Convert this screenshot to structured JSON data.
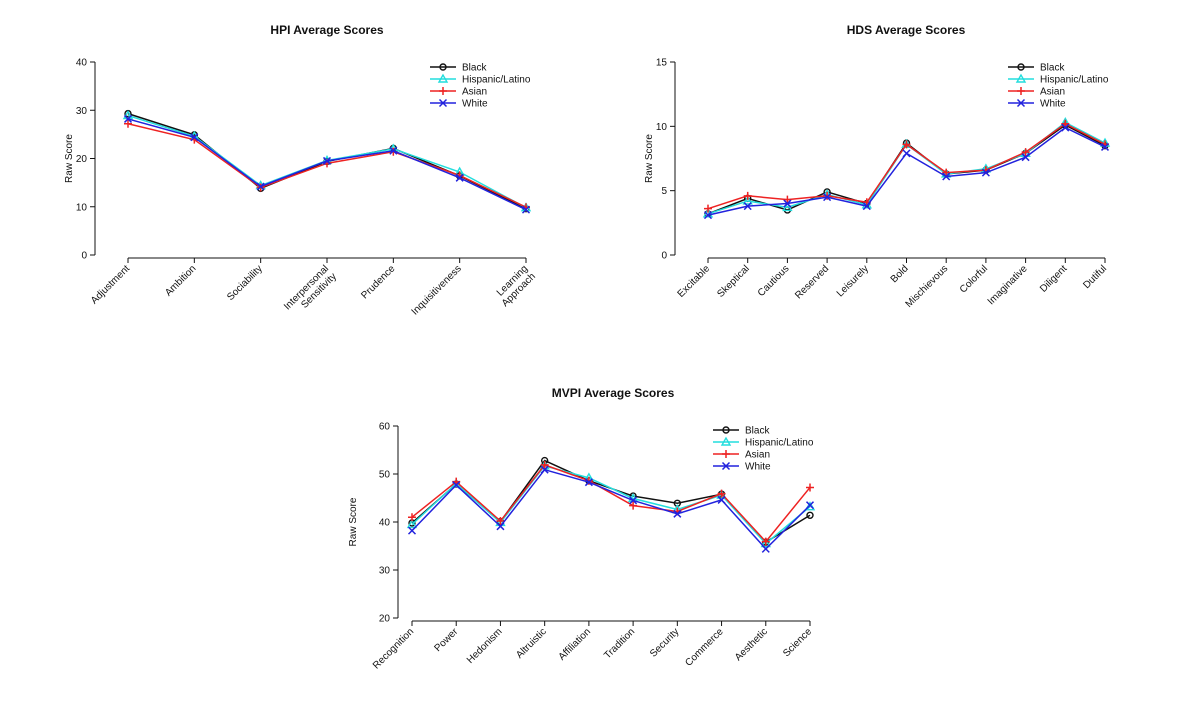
{
  "colors": {
    "Black": "#111111",
    "Hispanic/Latino": "#22dddd",
    "Asian": "#ee2222",
    "White": "#2222dd"
  },
  "chart_data": [
    {
      "type": "line",
      "title": "HPI Average Scores",
      "ylabel": "Raw Score",
      "ylim": [
        0,
        40
      ],
      "yticks": [
        0,
        10,
        20,
        30,
        40
      ],
      "categories": [
        "Adjustment",
        "Ambition",
        "Sociability",
        "Interpersonal Sensitivity",
        "Prudence",
        "Inquisitiveness",
        "Learning Approach"
      ],
      "legend_position": "top-right",
      "series": [
        {
          "name": "Black",
          "marker": "circle",
          "values": [
            29.3,
            24.9,
            13.8,
            19.4,
            22.1,
            16.4,
            9.6
          ]
        },
        {
          "name": "Hispanic/Latino",
          "marker": "triangle",
          "values": [
            28.9,
            24.6,
            14.4,
            19.6,
            22.0,
            17.2,
            9.8
          ]
        },
        {
          "name": "Asian",
          "marker": "plus",
          "values": [
            27.2,
            23.9,
            14.0,
            19.0,
            21.4,
            16.5,
            9.9
          ]
        },
        {
          "name": "White",
          "marker": "x",
          "values": [
            28.2,
            24.4,
            14.2,
            19.5,
            21.6,
            16.0,
            9.4
          ]
        }
      ]
    },
    {
      "type": "line",
      "title": "HDS Average Scores",
      "ylabel": "Raw Score",
      "ylim": [
        0,
        15
      ],
      "yticks": [
        0,
        5,
        10,
        15
      ],
      "categories": [
        "Excitable",
        "Skeptical",
        "Cautious",
        "Reserved",
        "Leisurely",
        "Bold",
        "Mischievous",
        "Colorful",
        "Imaginative",
        "Diligent",
        "Dutiful"
      ],
      "legend_position": "top-right",
      "series": [
        {
          "name": "Black",
          "marker": "circle",
          "values": [
            3.2,
            4.4,
            3.5,
            4.9,
            4.0,
            8.7,
            6.3,
            6.6,
            7.9,
            10.1,
            8.5
          ]
        },
        {
          "name": "Hispanic/Latino",
          "marker": "triangle",
          "values": [
            3.2,
            4.2,
            3.7,
            4.7,
            3.9,
            8.6,
            6.3,
            6.7,
            7.9,
            10.3,
            8.7
          ]
        },
        {
          "name": "Asian",
          "marker": "plus",
          "values": [
            3.6,
            4.6,
            4.3,
            4.6,
            4.1,
            8.6,
            6.4,
            6.6,
            8.0,
            10.2,
            8.6
          ]
        },
        {
          "name": "White",
          "marker": "x",
          "values": [
            3.1,
            3.8,
            4.0,
            4.5,
            3.8,
            7.9,
            6.1,
            6.4,
            7.6,
            9.9,
            8.4
          ]
        }
      ]
    },
    {
      "type": "line",
      "title": "MVPI Average Scores",
      "ylabel": "Raw Score",
      "ylim": [
        20,
        60
      ],
      "yticks": [
        20,
        30,
        40,
        50,
        60
      ],
      "categories": [
        "Recognition",
        "Power",
        "Hedonism",
        "Altruistic",
        "Affiliation",
        "Tradition",
        "Security",
        "Commerce",
        "Aesthetic",
        "Science"
      ],
      "legend_position": "top-right",
      "series": [
        {
          "name": "Black",
          "marker": "circle",
          "values": [
            39.8,
            47.9,
            40.1,
            52.8,
            48.6,
            45.4,
            43.9,
            45.8,
            35.8,
            41.4
          ]
        },
        {
          "name": "Hispanic/Latino",
          "marker": "triangle",
          "values": [
            39.5,
            48.0,
            39.9,
            51.7,
            49.2,
            44.9,
            42.6,
            45.6,
            35.5,
            43.2
          ]
        },
        {
          "name": "Asian",
          "marker": "plus",
          "values": [
            41.0,
            48.4,
            40.2,
            51.9,
            48.6,
            43.4,
            42.2,
            45.9,
            35.9,
            47.2
          ]
        },
        {
          "name": "White",
          "marker": "x",
          "values": [
            38.2,
            47.7,
            39.1,
            50.9,
            48.3,
            44.5,
            41.7,
            44.6,
            34.4,
            43.5
          ]
        }
      ]
    }
  ]
}
